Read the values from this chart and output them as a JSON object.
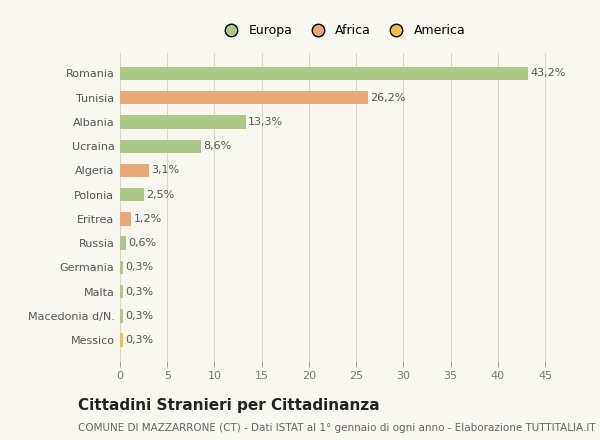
{
  "categories": [
    "Messico",
    "Macedonia d/N.",
    "Malta",
    "Germania",
    "Russia",
    "Eritrea",
    "Polonia",
    "Algeria",
    "Ucraina",
    "Albania",
    "Tunisia",
    "Romania"
  ],
  "values": [
    0.3,
    0.3,
    0.3,
    0.3,
    0.6,
    1.2,
    2.5,
    3.1,
    8.6,
    13.3,
    26.2,
    43.2
  ],
  "labels": [
    "0,3%",
    "0,3%",
    "0,3%",
    "0,3%",
    "0,6%",
    "1,2%",
    "2,5%",
    "3,1%",
    "8,6%",
    "13,3%",
    "26,2%",
    "43,2%"
  ],
  "colors": [
    "#f0c040",
    "#adc98a",
    "#adc98a",
    "#adc98a",
    "#adc98a",
    "#e8a878",
    "#adc98a",
    "#e8a878",
    "#adc98a",
    "#adc98a",
    "#e8a878",
    "#adc98a"
  ],
  "legend_labels": [
    "Europa",
    "Africa",
    "America"
  ],
  "legend_colors": [
    "#adc98a",
    "#e8a878",
    "#f0c040"
  ],
  "title": "Cittadini Stranieri per Cittadinanza",
  "subtitle": "COMUNE DI MAZZARRONE (CT) - Dati ISTAT al 1° gennaio di ogni anno - Elaborazione TUTTITALIA.IT",
  "xlim": [
    0,
    47
  ],
  "xticks": [
    0,
    5,
    10,
    15,
    20,
    25,
    30,
    35,
    40,
    45
  ],
  "background_color": "#f8f8f0",
  "grid_color": "#d8d8c0",
  "bar_height": 0.55,
  "title_fontsize": 11,
  "subtitle_fontsize": 7.5,
  "label_fontsize": 8,
  "tick_fontsize": 8,
  "legend_fontsize": 9
}
